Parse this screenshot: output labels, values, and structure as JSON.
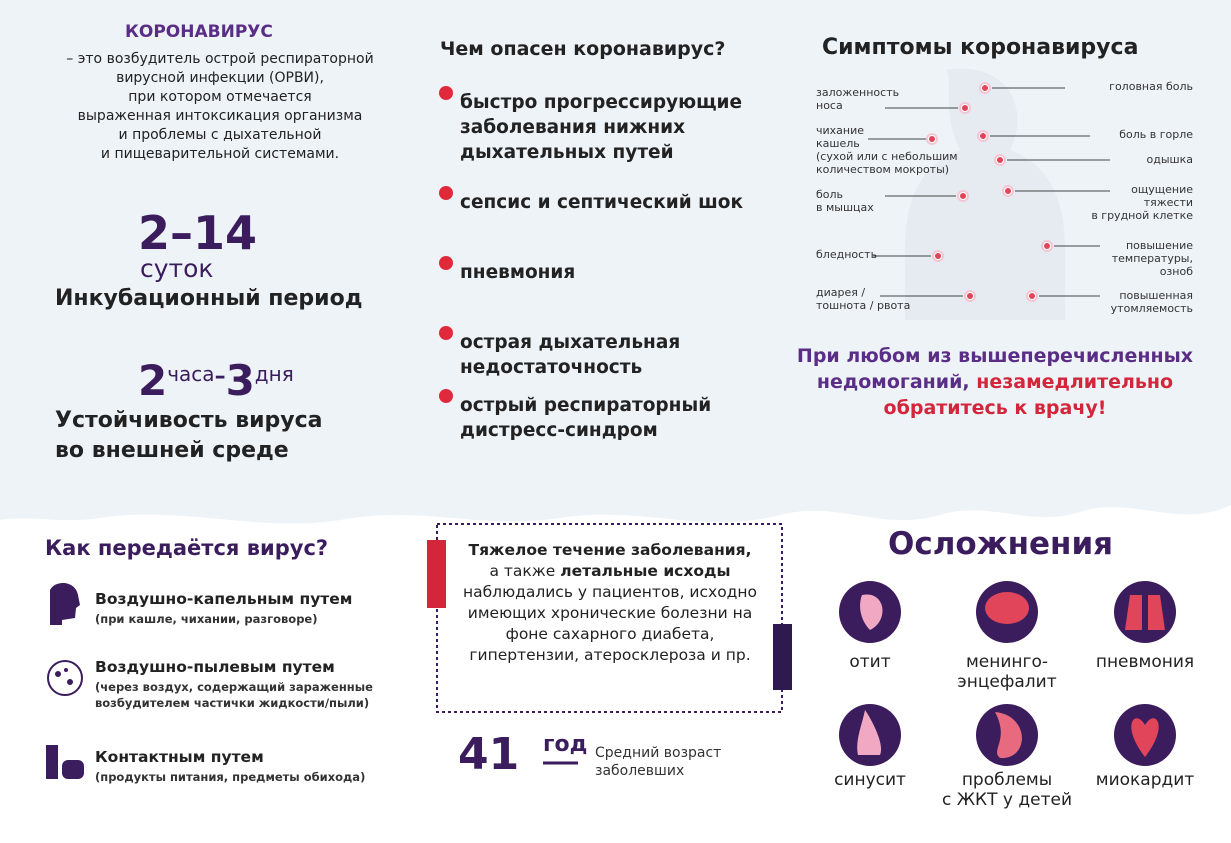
{
  "intro": {
    "title": "КОРОНАВИРУС",
    "lines": [
      "– это возбудитель острой респираторной",
      "вирусной инфекции (ОРВИ),",
      "при котором отмечается",
      "выраженная интоксикация организма",
      "и проблемы с дыхательной",
      "и пищеварительной системами."
    ]
  },
  "incubation": {
    "number": "2–14",
    "unit": "суток",
    "label": "Инкубационный период"
  },
  "stability": {
    "from": "2",
    "from_unit": "часа",
    "dash": "–",
    "to": "3",
    "to_unit": "дня",
    "label_lines": [
      "Устойчивость вируса",
      "во внешней среде"
    ]
  },
  "danger": {
    "title": "Чем опасен коронавирус?",
    "items": [
      [
        "быстро прогрессирующие",
        "заболевания нижних",
        "дыхательных путей"
      ],
      [
        "сепсис и септический шок"
      ],
      [
        "пневмония"
      ],
      [
        "острая дыхательная",
        "недостаточность"
      ],
      [
        "острый респираторный",
        "дистресс-синдром"
      ]
    ]
  },
  "symptoms": {
    "title": "Симптомы коронавируса",
    "left": [
      [
        "заложенность",
        "носа"
      ],
      [
        "чихание",
        "кашель",
        "(сухой или с небольшим",
        "количеством мокроты)"
      ],
      [
        "боль",
        "в мышцах"
      ],
      [
        "бледность"
      ],
      [
        "диарея /",
        "тошнота / рвота"
      ]
    ],
    "right": [
      [
        "головная боль"
      ],
      [
        "боль в горле"
      ],
      [
        "одышка"
      ],
      [
        "ощущение",
        "тяжести",
        "в грудной клетке"
      ],
      [
        "повышение",
        "температуры,",
        "озноб"
      ],
      [
        "повышенная",
        "утомляемость"
      ]
    ]
  },
  "warning": {
    "plain": "При любом из вышеперечисленных недомоганий,",
    "emphasis": "незамедлительно обратитесь к врачу!"
  },
  "transmission": {
    "title": "Как передаётся вирус?",
    "items": [
      {
        "title": "Воздушно-капельным путем",
        "note_lines": [
          "(при кашле, чихании, разговоре)"
        ]
      },
      {
        "title": "Воздушно-пылевым путем",
        "note_lines": [
          "(через воздух, содержащий зараженные",
          "возбудителем частички жидкости/пыли)"
        ]
      },
      {
        "title": "Контактным путем",
        "note_lines": [
          "(продукты питания, предметы обихода)"
        ]
      }
    ]
  },
  "severe": {
    "bold1": "Тяжелое течение заболевания,",
    "text1": "а также",
    "bold2": "летальные исходы",
    "text2": "наблюдались у пациентов, исходно имеющих хронические болезни на фоне сахарного диабета, гипертензии, атеросклероза и пр."
  },
  "age": {
    "number": "41",
    "unit": "год",
    "label_lines": [
      "Средний возраст",
      "заболевших"
    ]
  },
  "complications": {
    "title": "Осложнения",
    "items": [
      [
        "отит"
      ],
      [
        "менинго-",
        "энцефалит"
      ],
      [
        "пневмония"
      ],
      [
        "синусит"
      ],
      [
        "проблемы",
        "с ЖКТ у детей"
      ],
      [
        "миокардит"
      ]
    ]
  }
}
